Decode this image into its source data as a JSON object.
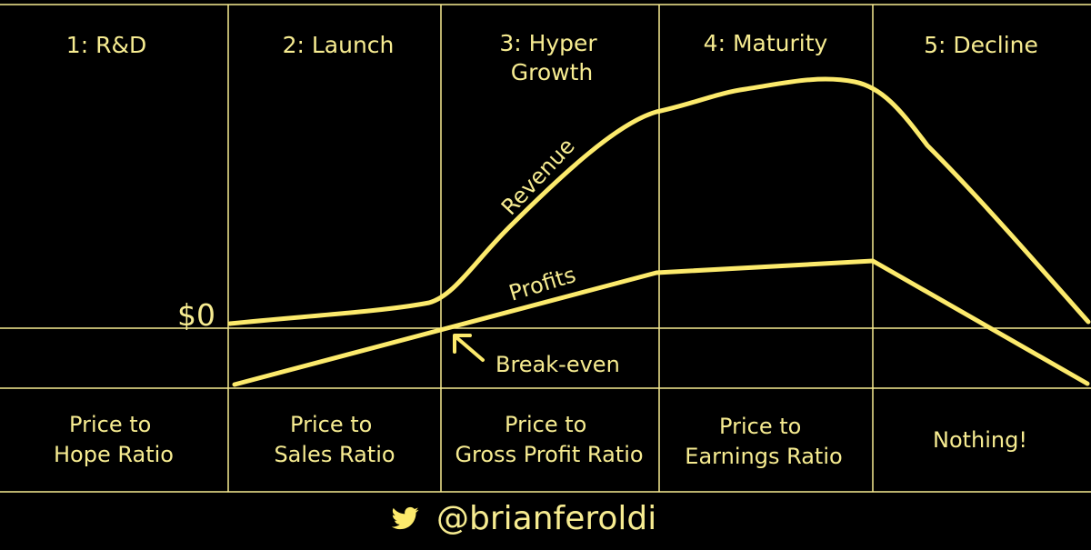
{
  "colors": {
    "background": "#000000",
    "accent": "#fcea6c",
    "text": "#f7ec91"
  },
  "stages": [
    {
      "lines": [
        "1: R&D"
      ]
    },
    {
      "lines": [
        "2: Launch"
      ]
    },
    {
      "lines": [
        "3: Hyper",
        "Growth"
      ]
    },
    {
      "lines": [
        "4: Maturity"
      ]
    },
    {
      "lines": [
        "5: Decline"
      ]
    }
  ],
  "metrics": [
    {
      "lines": [
        "Price to",
        "Hope Ratio"
      ]
    },
    {
      "lines": [
        "Price to",
        "Sales Ratio"
      ]
    },
    {
      "lines": [
        "Price to",
        "Gross Profit Ratio"
      ]
    },
    {
      "lines": [
        "Price to",
        "Earnings Ratio"
      ]
    },
    {
      "lines": [
        "Nothing!"
      ]
    }
  ],
  "curves": {
    "revenue_label": "Revenue",
    "profits_label": "Profits"
  },
  "zero_label": "$0",
  "break_even_label": "Break-even",
  "footer": {
    "icon": "twitter-bird-icon",
    "handle": "@brianferoldi"
  }
}
